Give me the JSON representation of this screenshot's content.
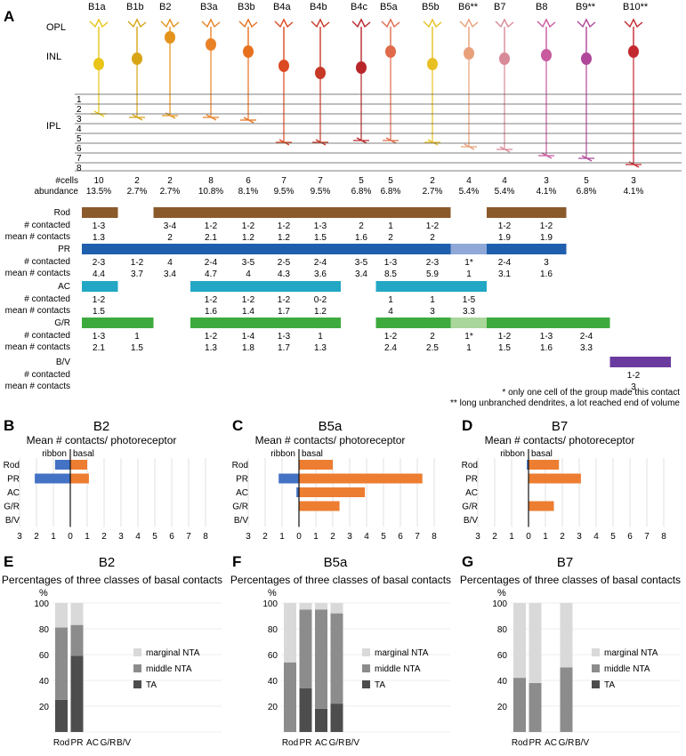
{
  "panelA": {
    "letter": "A",
    "types": [
      "B1a",
      "B1b",
      "B2",
      "B3a",
      "B3b",
      "B4a",
      "B4b",
      "B4c",
      "B5a",
      "B5b",
      "B6**",
      "B7",
      "B8",
      "B9**",
      "B10**"
    ],
    "layers": [
      "OPL",
      "INL",
      "IPL"
    ],
    "strata": [
      "1",
      "2",
      "3",
      "4",
      "5",
      "6",
      "7",
      "8"
    ],
    "cells_label": "#cells",
    "abundance_label": "abundance",
    "cells": [
      "10",
      "2",
      "2",
      "8",
      "6",
      "7",
      "7",
      "5",
      "5",
      "2",
      "4",
      "4",
      "3",
      "5",
      "3"
    ],
    "abundance": [
      "13.5%",
      "2.7%",
      "2.7%",
      "10.8%",
      "8.1%",
      "9.5%",
      "9.5%",
      "6.8%",
      "6.8%",
      "2.7%",
      "5.4%",
      "5.4%",
      "4.1%",
      "6.8%",
      "4.1%"
    ],
    "row_labels": {
      "contacted": "# contacted",
      "mean": "mean # contacts"
    },
    "rod": {
      "label": "Rod",
      "color": "#8B5A2B",
      "contacted": [
        "1-3",
        "",
        "3-4",
        "1-2",
        "1-2",
        "1-2",
        "1-3",
        "2",
        "1",
        "1-2",
        "",
        "1-2",
        "1-2",
        "",
        ""
      ],
      "mean": [
        "1.3",
        "",
        "2",
        "2.1",
        "1.2",
        "1.2",
        "1.5",
        "1.6",
        "2",
        "2",
        "",
        "1.9",
        "1.9",
        "",
        ""
      ]
    },
    "pr": {
      "label": "PR",
      "color": "#1F5FAD",
      "light_color": "#8FA8D8",
      "contacted": [
        "2-3",
        "1-2",
        "4",
        "2-4",
        "3-5",
        "2-5",
        "2-4",
        "3-5",
        "1-3",
        "2-3",
        "1*",
        "2-4",
        "3",
        "",
        ""
      ],
      "mean": [
        "4.4",
        "3.7",
        "3.4",
        "4.7",
        "4",
        "4.3",
        "3.6",
        "3.4",
        "8.5",
        "5.9",
        "1",
        "3.1",
        "1.6",
        "",
        ""
      ]
    },
    "ac": {
      "label": "AC",
      "color": "#22A7C4",
      "contacted": [
        "1-2",
        "",
        "",
        "1-2",
        "1-2",
        "1-2",
        "0-2",
        "",
        "1",
        "1",
        "1-5",
        "",
        "",
        "",
        ""
      ],
      "mean": [
        "1.5",
        "",
        "",
        "1.6",
        "1.4",
        "1.7",
        "1.2",
        "",
        "4",
        "3",
        "3.3",
        "",
        "",
        "",
        ""
      ]
    },
    "gr": {
      "label": "G/R",
      "color": "#3DAA3D",
      "light_color": "#A9D69A",
      "contacted": [
        "1-3",
        "1",
        "",
        "1-2",
        "1-4",
        "1-3",
        "1",
        "",
        "1-2",
        "2",
        "1*",
        "1-2",
        "1-3",
        "2-4",
        ""
      ],
      "mean": [
        "2.1",
        "1.5",
        "",
        "1.3",
        "1.8",
        "1.7",
        "1.3",
        "",
        "2.4",
        "2.5",
        "1",
        "1.5",
        "1.6",
        "3.3",
        ""
      ]
    },
    "bv": {
      "label": "B/V",
      "color": "#6B3A9E",
      "contacted": [
        "",
        "",
        "",
        "",
        "",
        "",
        "",
        "",
        "",
        "",
        "",
        "",
        "",
        "",
        "1-2"
      ],
      "mean": [
        "",
        "",
        "",
        "",
        "",
        "",
        "",
        "",
        "",
        "",
        "",
        "",
        "",
        "",
        "3"
      ]
    },
    "footnote1": "* only one cell of the group made this contact",
    "footnote2": "** long unbranched dendrites, a lot reached end of volume"
  },
  "contact_panels": [
    {
      "letter": "B",
      "title": "B2",
      "subtitle": "Mean # contacts/ photoreceptor",
      "ribbon_label": "ribbon",
      "basal_label": "basal",
      "categories": [
        "Rod",
        "PR",
        "AC",
        "G/R",
        "B/V"
      ],
      "ribbon": [
        0.9,
        2.1,
        0,
        0,
        0
      ],
      "basal": [
        1.0,
        1.1,
        0,
        0,
        0
      ],
      "ticks": [
        "3",
        "2",
        "1",
        "0",
        "1",
        "2",
        "3",
        "4",
        "5",
        "6",
        "7",
        "8"
      ]
    },
    {
      "letter": "C",
      "title": "B5a",
      "subtitle": "Mean # contacts/ photoreceptor",
      "ribbon_label": "ribbon",
      "basal_label": "basal",
      "categories": [
        "Rod",
        "PR",
        "AC",
        "G/R",
        "B/V"
      ],
      "ribbon": [
        0,
        1.2,
        0.15,
        0,
        0
      ],
      "basal": [
        2.0,
        7.3,
        3.9,
        2.4,
        0
      ],
      "ticks": [
        "3",
        "2",
        "1",
        "0",
        "1",
        "2",
        "3",
        "4",
        "5",
        "6",
        "7",
        "8"
      ]
    },
    {
      "letter": "D",
      "title": "B7",
      "subtitle": "Mean # contacts/ photoreceptor",
      "ribbon_label": "ribbon",
      "basal_label": "basal",
      "categories": [
        "Rod",
        "PR",
        "AC",
        "G/R",
        "B/V"
      ],
      "ribbon": [
        0.1,
        0,
        0,
        0,
        0
      ],
      "basal": [
        1.8,
        3.1,
        0,
        1.5,
        0
      ],
      "ticks": [
        "3",
        "2",
        "1",
        "0",
        "1",
        "2",
        "3",
        "4",
        "5",
        "6",
        "7",
        "8"
      ]
    }
  ],
  "percent_panels": [
    {
      "letter": "E",
      "title": "B2",
      "subtitle": "Percentages of three classes of basal contacts",
      "ylabel": "%",
      "categories": [
        "Rod",
        "PR",
        "AC",
        "G/R",
        "B/V"
      ],
      "yticks": [
        "20",
        "40",
        "60",
        "80",
        "100"
      ],
      "legend": [
        "marginal NTA",
        "middle NTA",
        "TA"
      ],
      "colors": {
        "marginal": "#D9D9D9",
        "middle": "#8C8C8C",
        "ta": "#4D4D4D"
      },
      "ta": [
        25,
        59,
        0,
        0,
        0
      ],
      "middle": [
        56,
        24,
        0,
        0,
        0
      ],
      "marginal": [
        19,
        17,
        0,
        0,
        0
      ]
    },
    {
      "letter": "F",
      "title": "B5a",
      "subtitle": "Percentages of three classes of basal contacts",
      "ylabel": "%",
      "categories": [
        "Rod",
        "PR",
        "AC",
        "G/R",
        "B/V"
      ],
      "yticks": [
        "20",
        "40",
        "60",
        "80",
        "100"
      ],
      "legend": [
        "marginal NTA",
        "middle NTA",
        "TA"
      ],
      "colors": {
        "marginal": "#D9D9D9",
        "middle": "#8C8C8C",
        "ta": "#4D4D4D"
      },
      "ta": [
        0,
        34,
        18,
        22,
        0
      ],
      "middle": [
        54,
        61,
        77,
        70,
        0
      ],
      "marginal": [
        46,
        5,
        5,
        8,
        0
      ]
    },
    {
      "letter": "G",
      "title": "B7",
      "subtitle": "Percentages of three classes of basal contacts",
      "ylabel": "%",
      "categories": [
        "Rod",
        "PR",
        "AC",
        "G/R",
        "B/V"
      ],
      "yticks": [
        "20",
        "40",
        "60",
        "80",
        "100"
      ],
      "legend": [
        "marginal NTA",
        "middle NTA",
        "TA"
      ],
      "colors": {
        "marginal": "#D9D9D9",
        "middle": "#8C8C8C",
        "ta": "#4D4D4D"
      },
      "ta": [
        0,
        0,
        0,
        0,
        0
      ],
      "middle": [
        42,
        38,
        0,
        50,
        0
      ],
      "marginal": [
        58,
        62,
        0,
        50,
        0
      ]
    }
  ],
  "chart_data": [
    {
      "type": "bar",
      "title": "B2",
      "subtitle": "Mean # contacts/ photoreceptor",
      "categories": [
        "Rod",
        "PR",
        "AC",
        "G/R",
        "B/V"
      ],
      "series": [
        {
          "name": "ribbon",
          "values": [
            0.9,
            2.1,
            0,
            0,
            0
          ]
        },
        {
          "name": "basal",
          "values": [
            1.0,
            1.1,
            0,
            0,
            0
          ]
        }
      ],
      "xlim": [
        -3,
        8
      ]
    },
    {
      "type": "bar",
      "title": "B5a",
      "subtitle": "Mean # contacts/ photoreceptor",
      "categories": [
        "Rod",
        "PR",
        "AC",
        "G/R",
        "B/V"
      ],
      "series": [
        {
          "name": "ribbon",
          "values": [
            0,
            1.2,
            0.15,
            0,
            0
          ]
        },
        {
          "name": "basal",
          "values": [
            2.0,
            7.3,
            3.9,
            2.4,
            0
          ]
        }
      ],
      "xlim": [
        -3,
        8
      ]
    },
    {
      "type": "bar",
      "title": "B7",
      "subtitle": "Mean # contacts/ photoreceptor",
      "categories": [
        "Rod",
        "PR",
        "AC",
        "G/R",
        "B/V"
      ],
      "series": [
        {
          "name": "ribbon",
          "values": [
            0.1,
            0,
            0,
            0,
            0
          ]
        },
        {
          "name": "basal",
          "values": [
            1.8,
            3.1,
            0,
            1.5,
            0
          ]
        }
      ],
      "xlim": [
        -3,
        8
      ]
    },
    {
      "type": "bar",
      "title": "B2",
      "subtitle": "Percentages of three classes of basal contacts",
      "ylabel": "%",
      "categories": [
        "Rod",
        "PR",
        "AC",
        "G/R",
        "B/V"
      ],
      "series": [
        {
          "name": "TA",
          "values": [
            25,
            59,
            0,
            0,
            0
          ]
        },
        {
          "name": "middle NTA",
          "values": [
            56,
            24,
            0,
            0,
            0
          ]
        },
        {
          "name": "marginal NTA",
          "values": [
            19,
            17,
            0,
            0,
            0
          ]
        }
      ],
      "ylim": [
        0,
        100
      ]
    },
    {
      "type": "bar",
      "title": "B5a",
      "subtitle": "Percentages of three classes of basal contacts",
      "ylabel": "%",
      "categories": [
        "Rod",
        "PR",
        "AC",
        "G/R",
        "B/V"
      ],
      "series": [
        {
          "name": "TA",
          "values": [
            0,
            34,
            18,
            22,
            0
          ]
        },
        {
          "name": "middle NTA",
          "values": [
            54,
            61,
            77,
            70,
            0
          ]
        },
        {
          "name": "marginal NTA",
          "values": [
            46,
            5,
            5,
            8,
            0
          ]
        }
      ],
      "ylim": [
        0,
        100
      ]
    },
    {
      "type": "bar",
      "title": "B7",
      "subtitle": "Percentages of three classes of basal contacts",
      "ylabel": "%",
      "categories": [
        "Rod",
        "PR",
        "AC",
        "G/R",
        "B/V"
      ],
      "series": [
        {
          "name": "TA",
          "values": [
            0,
            0,
            0,
            0,
            0
          ]
        },
        {
          "name": "middle NTA",
          "values": [
            42,
            38,
            0,
            50,
            0
          ]
        },
        {
          "name": "marginal NTA",
          "values": [
            58,
            62,
            0,
            50,
            0
          ]
        }
      ],
      "ylim": [
        0,
        100
      ]
    }
  ]
}
